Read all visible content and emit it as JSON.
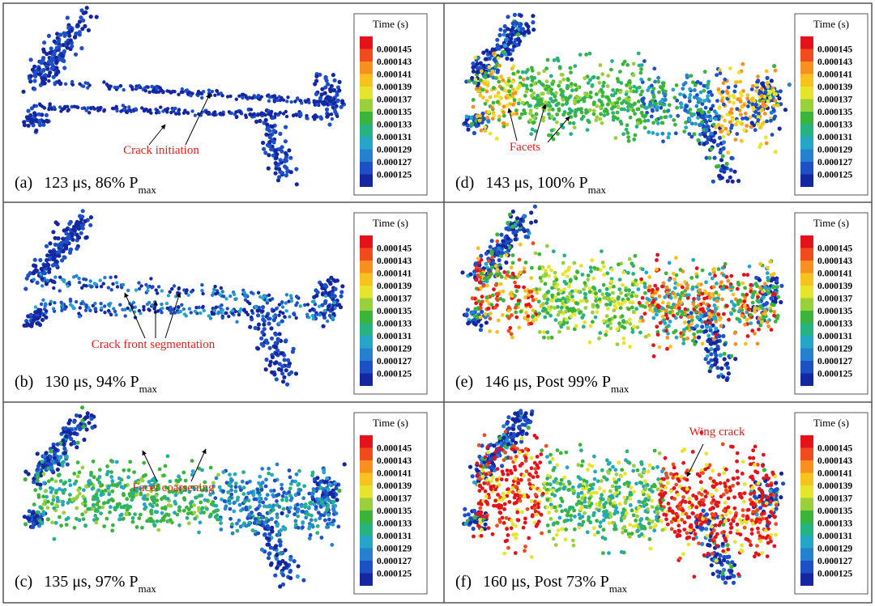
{
  "colorbar": {
    "title": "Time (s)",
    "ticks": [
      "0.000145",
      "0.000143",
      "0.000141",
      "0.000139",
      "0.000137",
      "0.000135",
      "0.000133",
      "0.000131",
      "0.000129",
      "0.000127",
      "0.000125"
    ],
    "colors": [
      "#e3121b",
      "#ef4b1d",
      "#f7901f",
      "#f6c21f",
      "#e6e52b",
      "#98d13b",
      "#3bb43c",
      "#26b37f",
      "#26a6c6",
      "#2680d0",
      "#1d4fc6",
      "#14279f"
    ]
  },
  "panels": [
    {
      "label": "(a)",
      "caption": "123 μs, 86% P",
      "subscript": "max",
      "annotation": "Crack initiation"
    },
    {
      "label": "(d)",
      "caption": "143 μs, 100% P",
      "subscript": "max",
      "annotation": "Facets"
    },
    {
      "label": "(b)",
      "caption": "130 μs, 94% P",
      "subscript": "max",
      "annotation": "Crack front segmentation"
    },
    {
      "label": "(e)",
      "caption": "146 μs, Post 99% P",
      "subscript": "max"
    },
    {
      "label": "(c)",
      "caption": "135 μs, 97% P",
      "subscript": "max",
      "annotation": "Facet coarsening"
    },
    {
      "label": "(f)",
      "caption": "160 μs, Post 73% P",
      "subscript": "max",
      "annotation": "Wing crack"
    }
  ]
}
